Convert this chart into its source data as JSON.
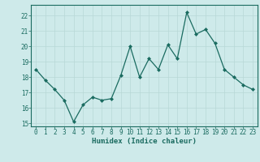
{
  "x": [
    0,
    1,
    2,
    3,
    4,
    5,
    6,
    7,
    8,
    9,
    10,
    11,
    12,
    13,
    14,
    15,
    16,
    17,
    18,
    19,
    20,
    21,
    22,
    23
  ],
  "y": [
    18.5,
    17.8,
    17.2,
    16.5,
    15.1,
    16.2,
    16.7,
    16.5,
    16.6,
    18.1,
    20.0,
    18.0,
    19.2,
    18.5,
    20.1,
    19.2,
    22.2,
    20.8,
    21.1,
    20.2,
    18.5,
    18.0,
    17.5,
    17.2
  ],
  "xlabel": "Humidex (Indice chaleur)",
  "ylim": [
    14.8,
    22.7
  ],
  "xlim": [
    -0.5,
    23.5
  ],
  "yticks": [
    15,
    16,
    17,
    18,
    19,
    20,
    21,
    22
  ],
  "xticks": [
    0,
    1,
    2,
    3,
    4,
    5,
    6,
    7,
    8,
    9,
    10,
    11,
    12,
    13,
    14,
    15,
    16,
    17,
    18,
    19,
    20,
    21,
    22,
    23
  ],
  "line_color": "#1a6b60",
  "marker_color": "#1a6b60",
  "bg_color": "#ceeaea",
  "grid_color": "#b8d8d6",
  "spine_color": "#1a6b60",
  "tick_color": "#1a6b60",
  "label_color": "#1a6b60",
  "tick_fontsize": 5.5,
  "xlabel_fontsize": 6.5
}
